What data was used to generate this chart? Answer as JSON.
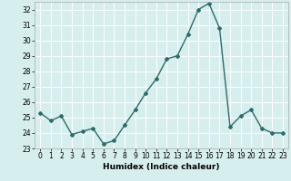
{
  "x": [
    0,
    1,
    2,
    3,
    4,
    5,
    6,
    7,
    8,
    9,
    10,
    11,
    12,
    13,
    14,
    15,
    16,
    17,
    18,
    19,
    20,
    21,
    22,
    23
  ],
  "y": [
    25.3,
    24.8,
    25.1,
    23.9,
    24.1,
    24.3,
    23.3,
    23.5,
    24.5,
    25.5,
    26.6,
    27.5,
    28.8,
    29.0,
    30.4,
    32.0,
    32.4,
    30.8,
    24.4,
    25.1,
    25.5,
    24.3,
    24.0,
    24.0
  ],
  "line_color": "#2e6b6b",
  "marker": "D",
  "marker_size": 2,
  "bg_color": "#d7eeee",
  "grid_color": "#ffffff",
  "xlabel": "Humidex (Indice chaleur)",
  "ylabel": "",
  "ylim": [
    23,
    32.5
  ],
  "xlim": [
    -0.5,
    23.5
  ],
  "yticks": [
    23,
    24,
    25,
    26,
    27,
    28,
    29,
    30,
    31,
    32
  ],
  "xticks": [
    0,
    1,
    2,
    3,
    4,
    5,
    6,
    7,
    8,
    9,
    10,
    11,
    12,
    13,
    14,
    15,
    16,
    17,
    18,
    19,
    20,
    21,
    22,
    23
  ],
  "xlabel_fontsize": 6.5,
  "tick_fontsize": 5.5,
  "linewidth": 1.0
}
